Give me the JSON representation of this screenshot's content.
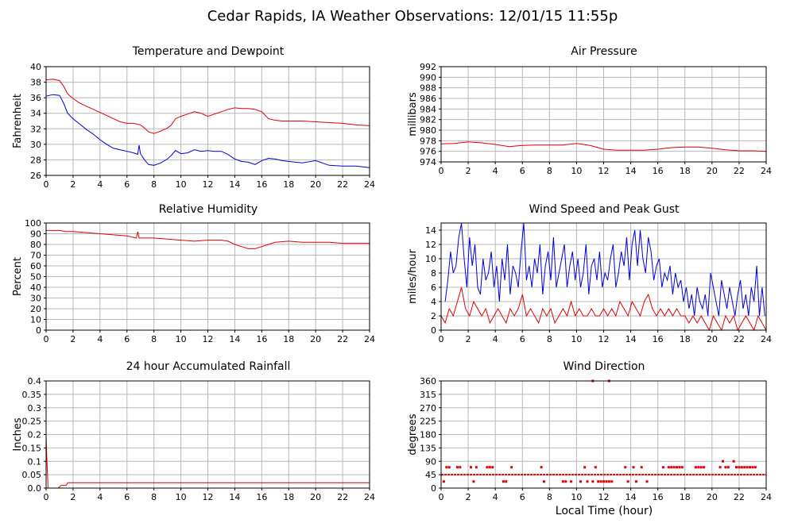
{
  "page_title": "Cedar Rapids, IA Weather Observations: 12/01/15 11:55p",
  "x_axis_label": "Local Time (hour)",
  "colors": {
    "temperature": "#e00000",
    "dewpoint": "#0000d8",
    "gust": "#0000d8",
    "speed": "#e00000",
    "rain": "#e00000",
    "direction": "#e00000",
    "grid": "#b8b8b8"
  },
  "chart_data": [
    {
      "id": "temp",
      "type": "line",
      "title": "Temperature and Dewpoint",
      "ylabel": "Fahrenheit",
      "xlim": [
        0,
        24
      ],
      "ylim": [
        26,
        40
      ],
      "x_ticks": [
        0,
        2,
        4,
        6,
        8,
        10,
        12,
        14,
        16,
        18,
        20,
        22,
        24
      ],
      "y_ticks": [
        26,
        28,
        30,
        32,
        34,
        36,
        38,
        40
      ],
      "grid": true,
      "series": [
        {
          "color": "#e00000",
          "x": [
            0,
            0.5,
            1,
            1.3,
            1.6,
            2,
            2.5,
            3,
            3.5,
            4,
            4.5,
            5,
            5.5,
            6,
            6.5,
            7,
            7.3,
            7.6,
            8,
            8.5,
            9,
            9.3,
            9.6,
            10,
            10.5,
            11,
            11.5,
            12,
            12.5,
            13,
            13.5,
            14,
            14.5,
            15,
            15.5,
            16,
            16.5,
            17,
            17.5,
            18,
            19,
            20,
            21,
            22,
            23,
            24
          ],
          "y": [
            38.3,
            38.4,
            38.2,
            37.5,
            36.5,
            35.9,
            35.3,
            34.9,
            34.5,
            34.1,
            33.7,
            33.3,
            32.9,
            32.7,
            32.7,
            32.5,
            32.1,
            31.6,
            31.4,
            31.7,
            32.1,
            32.5,
            33.3,
            33.6,
            33.9,
            34.2,
            34.0,
            33.6,
            33.9,
            34.2,
            34.5,
            34.7,
            34.6,
            34.6,
            34.5,
            34.2,
            33.3,
            33.1,
            33.0,
            33.0,
            33.0,
            32.9,
            32.8,
            32.7,
            32.5,
            32.4
          ]
        },
        {
          "color": "#0000d8",
          "x": [
            0,
            0.5,
            1,
            1.3,
            1.6,
            2,
            2.5,
            3,
            3.5,
            4,
            4.5,
            5,
            5.5,
            6,
            6.5,
            6.8,
            6.9,
            7,
            7.3,
            7.6,
            8,
            8.5,
            9,
            9.3,
            9.6,
            10,
            10.5,
            11,
            11.5,
            12,
            12.5,
            13,
            13.5,
            14,
            14.5,
            15,
            15.5,
            16,
            16.5,
            17,
            17.5,
            18,
            19,
            20,
            21,
            22,
            23,
            24
          ],
          "y": [
            36.2,
            36.4,
            36.3,
            35.3,
            34.0,
            33.3,
            32.6,
            31.9,
            31.3,
            30.6,
            30.0,
            29.5,
            29.3,
            29.1,
            28.9,
            28.7,
            29.9,
            28.8,
            28.0,
            27.4,
            27.3,
            27.6,
            28.1,
            28.6,
            29.2,
            28.8,
            28.9,
            29.3,
            29.1,
            29.2,
            29.1,
            29.1,
            28.7,
            28.1,
            27.8,
            27.7,
            27.4,
            27.9,
            28.2,
            28.1,
            27.9,
            27.8,
            27.6,
            27.9,
            27.3,
            27.2,
            27.2,
            27.0
          ]
        }
      ]
    },
    {
      "id": "pressure",
      "type": "line",
      "title": "Air Pressure",
      "ylabel": "millibars",
      "xlim": [
        0,
        24
      ],
      "ylim": [
        974,
        992
      ],
      "x_ticks": [
        0,
        2,
        4,
        6,
        8,
        10,
        12,
        14,
        16,
        18,
        20,
        22,
        24
      ],
      "y_ticks": [
        974,
        976,
        978,
        980,
        982,
        984,
        986,
        988,
        990,
        992
      ],
      "grid": true,
      "series": [
        {
          "color": "#e00000",
          "x": [
            0,
            1,
            2,
            3,
            4,
            5,
            6,
            7,
            8,
            9,
            10,
            11,
            12,
            13,
            14,
            15,
            16,
            17,
            18,
            19,
            20,
            21,
            22,
            23,
            24
          ],
          "y": [
            977.4,
            977.5,
            977.8,
            977.6,
            977.3,
            976.9,
            977.1,
            977.2,
            977.2,
            977.2,
            977.5,
            977.1,
            976.4,
            976.2,
            976.2,
            976.2,
            976.4,
            976.7,
            976.8,
            976.8,
            976.6,
            976.3,
            976.1,
            976.1,
            976.0
          ]
        }
      ]
    },
    {
      "id": "humidity",
      "type": "line",
      "title": "Relative Humidity",
      "ylabel": "Percent",
      "xlim": [
        0,
        24
      ],
      "ylim": [
        0,
        100
      ],
      "x_ticks": [
        0,
        2,
        4,
        6,
        8,
        10,
        12,
        14,
        16,
        18,
        20,
        22,
        24
      ],
      "y_ticks": [
        0,
        10,
        20,
        30,
        40,
        50,
        60,
        70,
        80,
        90,
        100
      ],
      "grid": true,
      "series": [
        {
          "color": "#e00000",
          "x": [
            0,
            1,
            1.5,
            2,
            3,
            4,
            5,
            6,
            6.7,
            6.8,
            6.9,
            7,
            8,
            9,
            10,
            11,
            12,
            13,
            13.5,
            14,
            14.5,
            15,
            15.5,
            16,
            16.5,
            17,
            18,
            19,
            20,
            21,
            22,
            23,
            24
          ],
          "y": [
            93,
            93,
            92,
            92,
            91,
            90,
            89,
            88,
            86,
            92,
            86,
            86,
            86,
            85,
            84,
            83,
            84,
            84,
            83,
            80,
            78,
            76,
            76,
            78,
            80,
            82,
            83,
            82,
            82,
            82,
            81,
            81,
            81
          ]
        }
      ]
    },
    {
      "id": "wind",
      "type": "line",
      "title": "Wind Speed and Peak Gust",
      "ylabel": "miles/hour",
      "xlim": [
        0,
        24
      ],
      "ylim": [
        0,
        15
      ],
      "x_ticks": [
        0,
        2,
        4,
        6,
        8,
        10,
        12,
        14,
        16,
        18,
        20,
        22,
        24
      ],
      "y_ticks": [
        0,
        2,
        4,
        6,
        8,
        10,
        12,
        14
      ],
      "grid": true,
      "series": [
        {
          "color": "#0000d8",
          "x": [
            0.3,
            0.5,
            0.7,
            0.9,
            1.1,
            1.3,
            1.5,
            1.7,
            1.9,
            2.1,
            2.3,
            2.5,
            2.7,
            2.9,
            3.1,
            3.3,
            3.5,
            3.7,
            3.9,
            4.1,
            4.3,
            4.5,
            4.7,
            4.9,
            5.1,
            5.3,
            5.5,
            5.7,
            5.9,
            6.1,
            6.3,
            6.5,
            6.7,
            6.9,
            7.1,
            7.3,
            7.5,
            7.7,
            7.9,
            8.1,
            8.3,
            8.5,
            8.7,
            8.9,
            9.1,
            9.3,
            9.5,
            9.7,
            9.9,
            10.1,
            10.3,
            10.5,
            10.7,
            10.9,
            11.1,
            11.3,
            11.5,
            11.7,
            11.9,
            12.1,
            12.3,
            12.5,
            12.7,
            12.9,
            13.1,
            13.3,
            13.5,
            13.7,
            13.9,
            14.1,
            14.3,
            14.5,
            14.7,
            14.9,
            15.1,
            15.3,
            15.5,
            15.7,
            15.9,
            16.1,
            16.3,
            16.5,
            16.7,
            16.9,
            17.1,
            17.3,
            17.5,
            17.7,
            17.9,
            18.1,
            18.3,
            18.5,
            18.7,
            18.9,
            19.1,
            19.3,
            19.5,
            19.7,
            19.9,
            20.1,
            20.3,
            20.5,
            20.7,
            20.9,
            21.1,
            21.3,
            21.5,
            21.7,
            21.9,
            22.1,
            22.3,
            22.5,
            22.7,
            22.9,
            23.1,
            23.3,
            23.5,
            23.7,
            23.9
          ],
          "y": [
            4,
            7,
            11,
            8,
            9,
            13,
            15,
            10,
            6,
            13,
            9,
            12,
            6,
            5,
            10,
            7,
            8,
            11,
            6,
            9,
            4,
            10,
            7,
            12,
            5,
            9,
            8,
            6,
            11,
            15,
            7,
            9,
            6,
            10,
            8,
            12,
            5,
            9,
            11,
            7,
            13,
            6,
            8,
            10,
            12,
            6,
            9,
            11,
            7,
            10,
            6,
            8,
            12,
            5,
            9,
            10,
            7,
            11,
            6,
            8,
            7,
            10,
            12,
            6,
            8,
            11,
            9,
            13,
            7,
            12,
            14,
            9,
            14,
            10,
            8,
            13,
            11,
            7,
            9,
            10,
            6,
            8,
            7,
            9,
            5,
            8,
            6,
            7,
            4,
            6,
            3,
            5,
            2,
            6,
            4,
            3,
            5,
            2,
            8,
            6,
            4,
            2,
            7,
            5,
            3,
            6,
            4,
            2,
            5,
            7,
            3,
            5,
            2,
            6,
            4,
            9,
            2,
            6,
            2
          ]
        },
        {
          "color": "#e00000",
          "x": [
            0,
            0.3,
            0.6,
            0.9,
            1.2,
            1.5,
            1.8,
            2.1,
            2.4,
            2.7,
            3,
            3.3,
            3.6,
            3.9,
            4.2,
            4.5,
            4.8,
            5.1,
            5.4,
            5.7,
            6,
            6.3,
            6.6,
            6.9,
            7.2,
            7.5,
            7.8,
            8.1,
            8.4,
            8.7,
            9,
            9.3,
            9.6,
            9.9,
            10.2,
            10.5,
            10.8,
            11.1,
            11.4,
            11.7,
            12,
            12.3,
            12.6,
            12.9,
            13.2,
            13.5,
            13.8,
            14.1,
            14.4,
            14.7,
            15,
            15.3,
            15.6,
            15.9,
            16.2,
            16.5,
            16.8,
            17.1,
            17.4,
            17.7,
            18,
            18.3,
            18.6,
            18.9,
            19.2,
            19.5,
            19.8,
            20.1,
            20.4,
            20.7,
            21,
            21.3,
            21.6,
            21.9,
            22.2,
            22.5,
            22.8,
            23.1,
            23.4,
            23.7,
            24
          ],
          "y": [
            2,
            1,
            3,
            2,
            4,
            6,
            3,
            2,
            4,
            3,
            2,
            3,
            1,
            2,
            3,
            2,
            1,
            3,
            2,
            3,
            5,
            2,
            3,
            2,
            1,
            3,
            2,
            3,
            1,
            2,
            3,
            2,
            4,
            2,
            3,
            2,
            2,
            3,
            2,
            2,
            3,
            2,
            3,
            2,
            4,
            3,
            2,
            4,
            3,
            2,
            4,
            5,
            3,
            2,
            3,
            2,
            3,
            2,
            3,
            2,
            2,
            1,
            2,
            1,
            2,
            1,
            0,
            2,
            1,
            0,
            2,
            1,
            2,
            0,
            1,
            2,
            1,
            0,
            2,
            1,
            0
          ]
        }
      ]
    },
    {
      "id": "rain",
      "type": "line",
      "title": "24 hour Accumulated Rainfall",
      "ylabel": "Inches",
      "xlim": [
        0,
        24
      ],
      "ylim": [
        0,
        0.4
      ],
      "x_ticks": [
        0,
        2,
        4,
        6,
        8,
        10,
        12,
        14,
        16,
        18,
        20,
        22,
        24
      ],
      "y_ticks": [
        0,
        0.05,
        0.1,
        0.15,
        0.2,
        0.25,
        0.3,
        0.35,
        0.4
      ],
      "y_tick_labels": [
        "0.0",
        "0.05",
        "0.1",
        "0.15",
        "0.2",
        "0.25",
        "0.3",
        "0.35",
        "0.4"
      ],
      "grid": true,
      "series": [
        {
          "color": "#e00000",
          "x": [
            0,
            0.05,
            0.15,
            0.3,
            0.9,
            1.1,
            1.5,
            1.6,
            24
          ],
          "y": [
            0.2,
            0.12,
            0.0,
            0.0,
            0.0,
            0.01,
            0.01,
            0.02,
            0.02
          ]
        }
      ]
    },
    {
      "id": "direction",
      "type": "scatter",
      "title": "Wind Direction",
      "ylabel": "degrees",
      "xlim": [
        0,
        24
      ],
      "ylim": [
        0,
        360
      ],
      "x_ticks": [
        0,
        2,
        4,
        6,
        8,
        10,
        12,
        14,
        16,
        18,
        20,
        22,
        24
      ],
      "y_ticks": [
        0,
        45,
        90,
        135,
        180,
        225,
        270,
        315,
        360
      ],
      "grid": true,
      "series": [
        {
          "color": "#e00000",
          "x": [
            0.2,
            0.4,
            0.6,
            1.2,
            1.4,
            2.2,
            2.4,
            2.6,
            3.4,
            3.6,
            3.8,
            4.6,
            4.8,
            5.2,
            7.4,
            7.6,
            9.0,
            9.2,
            9.6,
            10.3,
            10.6,
            10.8,
            11.2,
            11.4,
            11.6,
            11.8,
            12.0,
            12.2,
            12.4,
            12.6,
            13.6,
            13.8,
            14.2,
            14.4,
            14.8,
            15.2,
            16.4,
            16.8,
            17.0,
            17.2,
            17.4,
            17.6,
            17.8,
            18.8,
            19.0,
            19.2,
            19.4,
            20.6,
            20.8,
            21.0,
            21.2,
            21.6,
            21.8,
            22.0,
            22.2,
            22.4,
            22.6,
            22.8,
            23.0,
            23.2,
            11.2,
            12.4
          ],
          "y": [
            22,
            70,
            70,
            70,
            70,
            70,
            22,
            70,
            70,
            70,
            70,
            22,
            22,
            70,
            70,
            22,
            22,
            22,
            22,
            22,
            70,
            22,
            22,
            70,
            22,
            22,
            22,
            22,
            22,
            22,
            70,
            22,
            70,
            22,
            70,
            22,
            70,
            70,
            70,
            70,
            70,
            70,
            70,
            70,
            70,
            70,
            70,
            70,
            90,
            70,
            70,
            90,
            70,
            70,
            70,
            70,
            70,
            70,
            70,
            70,
            360,
            360
          ],
          "base_line": 45
        }
      ]
    }
  ]
}
